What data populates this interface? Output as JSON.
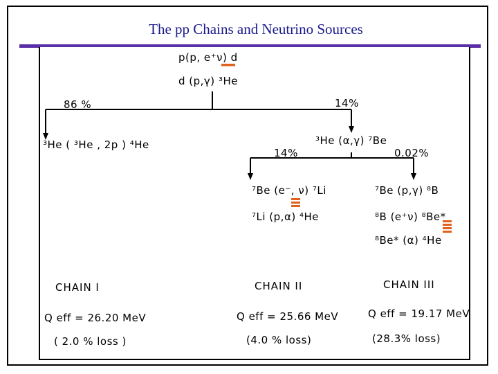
{
  "title": "The pp Chains and Neutrino Sources",
  "reactions": {
    "pp": "p(p, e⁺ν) d",
    "dp": "d (p,γ) ³He",
    "he3he3": "³He ( ³He , 2p ) ⁴He",
    "he3alpha": "³He (α,γ) ⁷Be",
    "be7e": "⁷Be (e⁻, ν) ⁷Li",
    "li7p": "⁷Li (p,α) ⁴He",
    "be7p": "⁷Be (p,γ) ⁸B",
    "b8decay": "⁸B (e⁺ν) ⁸Be*",
    "be8decay": "⁸Be* (α) ⁴He"
  },
  "branches": {
    "main_left": "86 %",
    "main_right": "14%",
    "sub_left": "14%",
    "sub_right": "0.02%"
  },
  "chains": [
    {
      "label": "CHAIN  I",
      "qeff": "Q eff  = 26.20 MeV",
      "loss": "( 2.0 % loss )"
    },
    {
      "label": "CHAIN  II",
      "qeff": "Q eff = 25.66 MeV",
      "loss": "(4.0 % loss)"
    },
    {
      "label": "CHAIN  III",
      "qeff": "Q eff = 19.17 MeV",
      "loss": "(28.3% loss)"
    }
  ],
  "colors": {
    "title": "#1a1a8c",
    "rule": "#5a2ea6",
    "neutrino_marker": "#e0601c"
  }
}
